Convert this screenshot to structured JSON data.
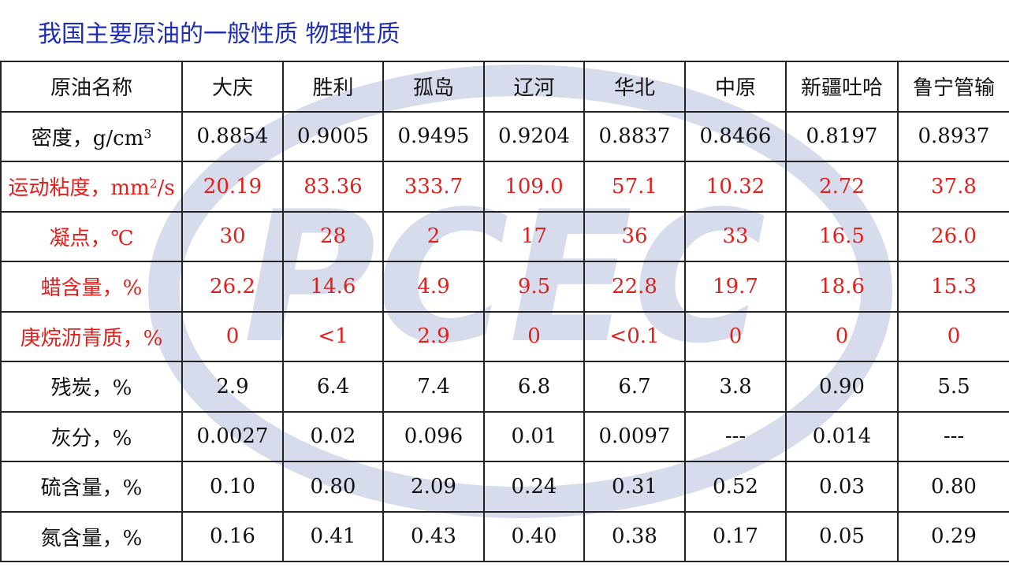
{
  "title": "我国主要原油的一般性质 物理性质",
  "watermark": {
    "text": "PCEC",
    "color": "#d6dcec"
  },
  "accent_color": "#1f2fb0",
  "highlight_color": "#e0201c",
  "table": {
    "columns": [
      "原油名称",
      "大庆",
      "胜利",
      "孤岛",
      "辽河",
      "华北",
      "中原",
      "新疆吐哈",
      "鲁宁管输"
    ],
    "rows": [
      {
        "label": "密度，g/cm",
        "label_sup": "3",
        "highlight": false,
        "values": [
          "0.8854",
          "0.9005",
          "0.9495",
          "0.9204",
          "0.8837",
          "0.8466",
          "0.8197",
          "0.8937"
        ]
      },
      {
        "label": "运动粘度，mm",
        "label_sup": "2",
        "label_suffix": "/s",
        "highlight": true,
        "values": [
          "20.19",
          "83.36",
          "333.7",
          "109.0",
          "57.1",
          "10.32",
          "2.72",
          "37.8"
        ]
      },
      {
        "label": "凝点，℃",
        "highlight": true,
        "values": [
          "30",
          "28",
          "2",
          "17",
          "36",
          "33",
          "16.5",
          "26.0"
        ]
      },
      {
        "label": "蜡含量，%",
        "highlight": true,
        "values": [
          "26.2",
          "14.6",
          "4.9",
          "9.5",
          "22.8",
          "19.7",
          "18.6",
          "15.3"
        ]
      },
      {
        "label": "庚烷沥青质，%",
        "highlight": true,
        "values": [
          "0",
          "<1",
          "2.9",
          "0",
          "<0.1",
          "0",
          "0",
          "0"
        ]
      },
      {
        "label": "残炭，%",
        "highlight": false,
        "values": [
          "2.9",
          "6.4",
          "7.4",
          "6.8",
          "6.7",
          "3.8",
          "0.90",
          "5.5"
        ]
      },
      {
        "label": "灰分，%",
        "highlight": false,
        "values": [
          "0.0027",
          "0.02",
          "0.096",
          "0.01",
          "0.0097",
          "---",
          "0.014",
          "---"
        ]
      },
      {
        "label": "硫含量，%",
        "highlight": false,
        "values": [
          "0.10",
          "0.80",
          "2.09",
          "0.24",
          "0.31",
          "0.52",
          "0.03",
          "0.80"
        ]
      },
      {
        "label": "氮含量，%",
        "highlight": false,
        "values": [
          "0.16",
          "0.41",
          "0.43",
          "0.40",
          "0.38",
          "0.17",
          "0.05",
          "0.29"
        ]
      }
    ]
  }
}
